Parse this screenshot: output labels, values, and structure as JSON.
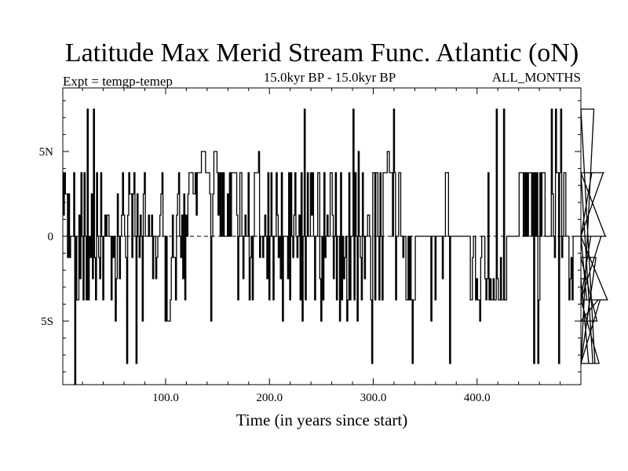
{
  "chart_data": {
    "type": "line",
    "title": "Latitude Max Merid Stream Func. Atlantic (oN)",
    "subtitle_left": "Expt = temgp-temep",
    "subtitle_center": "15.0kyr BP - 15.0kyr BP",
    "subtitle_right": "ALL_MONTHS",
    "xlabel": "Time (in years since start)",
    "ylabel": "",
    "xlim": [
      1,
      500
    ],
    "ylim": [
      -8.75,
      8.75
    ],
    "x_ticks": [
      {
        "value": 100,
        "label": "100.0"
      },
      {
        "value": 200,
        "label": "200.0"
      },
      {
        "value": 300,
        "label": "300.0"
      },
      {
        "value": 400,
        "label": "400.0"
      }
    ],
    "y_ticks": [
      {
        "value": 5,
        "label": "5N"
      },
      {
        "value": 0,
        "label": "0"
      },
      {
        "value": -5,
        "label": "5S"
      }
    ],
    "zero_line": true,
    "step": true,
    "series": [
      {
        "name": "latitude",
        "x_start": 1,
        "x_step": 1,
        "values": [
          3.75,
          1.25,
          3.75,
          2.5,
          2.5,
          -1.25,
          2.5,
          -1.25,
          0,
          0,
          0,
          3.75,
          -8.75,
          0,
          -3.75,
          -3.75,
          1.25,
          -2.5,
          3.75,
          0,
          -3.75,
          3.75,
          0,
          -3.75,
          7.5,
          -3.75,
          0,
          -1.25,
          2.5,
          -2.5,
          7.5,
          -1.25,
          -3.75,
          3.75,
          0,
          -1.25,
          -2.5,
          3.75,
          0,
          -3.75,
          0,
          1.25,
          0,
          1.25,
          1.25,
          0,
          0,
          -3.75,
          0,
          -1.25,
          0,
          -5,
          -2.5,
          2.5,
          0,
          -2.5,
          0,
          1.25,
          3.75,
          1.25,
          0,
          -1.25,
          -7.5,
          1.25,
          3.75,
          2.5,
          2.5,
          -1.25,
          2.5,
          3.75,
          0,
          -7.5,
          2.5,
          0,
          -1.25,
          1.25,
          0,
          -5,
          2.5,
          3.75,
          0,
          0,
          0,
          1.25,
          0,
          0,
          1.25,
          -2.5,
          0,
          0,
          -2.5,
          -1.25,
          0,
          0,
          1.25,
          2.5,
          3.75,
          0,
          0,
          -5,
          0,
          -5,
          -5,
          -5,
          -3.75,
          -1.25,
          1.25,
          -1.25,
          -1.25,
          -3.75,
          1.25,
          2.5,
          3.75,
          0,
          -1.25,
          1.25,
          -2.5,
          2.5,
          -3.75,
          1.25,
          0,
          2.5,
          3.75,
          3.75,
          3.75,
          3.75,
          2.5,
          2.5,
          3.75,
          1.25,
          3.75,
          3.75,
          3.75,
          3.75,
          5,
          5,
          5,
          5,
          3.75,
          3.75,
          3.75,
          3.75,
          2.5,
          -5,
          0,
          2.5,
          5,
          5,
          5,
          3.75,
          1.25,
          3.75,
          0,
          3.75,
          0,
          3.75,
          0,
          0,
          0,
          2.5,
          0,
          3.75,
          0,
          3.75,
          3.75,
          3.75,
          3.75,
          3.75,
          1.25,
          -3.75,
          0,
          3.75,
          3.75,
          0,
          -2.5,
          0,
          1.25,
          0,
          0,
          3.75,
          -3.75,
          -1.25,
          0,
          -3.75,
          0,
          3.75,
          3.75,
          3.75,
          3.75,
          5,
          -1.25,
          0,
          0,
          -1.25,
          0,
          1.25,
          0,
          -2.5,
          3.75,
          -3.75,
          0,
          3.75,
          0,
          -3.75,
          0,
          0,
          3.75,
          1.25,
          -1.25,
          0,
          -2.5,
          3.75,
          -5,
          0,
          0,
          0,
          0,
          -2.5,
          3.75,
          -3.75,
          3.75,
          0,
          -1.25,
          1.25,
          3.75,
          0,
          -1.25,
          0,
          1.25,
          -3.75,
          3.75,
          -5,
          0,
          7.5,
          -3.75,
          0,
          3.75,
          0,
          0,
          3.75,
          1.25,
          3.75,
          0,
          -3.75,
          0,
          0,
          3.75,
          3.75,
          -2.5,
          -5,
          0,
          -3.75,
          3.75,
          -1.25,
          0,
          1.25,
          0,
          0,
          3.75,
          3.75,
          1.25,
          -2.5,
          0,
          3.75,
          -3.75,
          0,
          0,
          -5,
          3.75,
          -3.75,
          0,
          -2.5,
          -1.25,
          0,
          -5,
          -3.75,
          3.75,
          -3.75,
          0,
          0,
          7.5,
          -3.75,
          3.75,
          0,
          -5,
          5,
          0,
          -1.25,
          -3.75,
          3.75,
          0,
          -2.5,
          0,
          0,
          1.25,
          1.25,
          0,
          -3.75,
          -7.5,
          3.75,
          3.75,
          -3.75,
          3.75,
          3.75,
          0,
          -3.75,
          3.75,
          0,
          -3.75,
          3.75,
          3.75,
          3.75,
          3.75,
          5,
          5,
          3.75,
          3.75,
          3.75,
          0,
          7.5,
          3.75,
          -3.75,
          0,
          0,
          3.75,
          3.75,
          0,
          0,
          -1.25,
          0,
          0,
          -3.75,
          -3.75,
          0,
          -3.75,
          0,
          -3.75,
          -7.5,
          -3.75,
          -3.75,
          0,
          0,
          0,
          0,
          0,
          0,
          0,
          0,
          0,
          0,
          0,
          0,
          0,
          0,
          0,
          -5,
          0,
          0,
          0,
          -3.75,
          0,
          0,
          0,
          0,
          0,
          0,
          -2.5,
          0,
          0,
          3.75,
          3.75,
          3.75,
          0,
          -7.5,
          0,
          0,
          0,
          0,
          0,
          0,
          0,
          0,
          0,
          0,
          0,
          0,
          0,
          0,
          0,
          0,
          0,
          0,
          0,
          -3.75,
          -3.75,
          -1.25,
          0,
          0,
          -3.75,
          -2.5,
          -3.75,
          -3.75,
          -5,
          -1.25,
          0,
          0,
          0,
          -2.5,
          -3.75,
          -2.5,
          3.75,
          -3.75,
          -2.5,
          -3.75,
          -3.75,
          -2.5,
          -3.75,
          -3.75,
          7.5,
          -2.5,
          -3.75,
          -3.75,
          -1.25,
          -3.75,
          -3.75,
          7.5,
          -3.75,
          -3.75,
          0,
          0,
          0,
          0,
          0,
          0,
          0,
          0,
          0,
          0,
          0,
          0,
          3.75,
          3.75,
          3.75,
          3.75,
          0,
          3.75,
          0,
          3.75,
          0,
          3.75,
          3.75,
          3.75,
          0,
          3.75,
          -7.5,
          3.75,
          0,
          3.75,
          -7.5,
          -3.75,
          3.75,
          0,
          3.75,
          3.75,
          3.75,
          0,
          0,
          0,
          0,
          0,
          0,
          7.5,
          2.5,
          0,
          -1.25,
          7.5,
          3.75,
          3.75,
          -7.5,
          3.75,
          7.5,
          -1.25,
          0,
          3.75,
          3.75,
          0,
          0,
          0,
          -3.75,
          -2.5,
          -1.25,
          -3.75,
          0,
          0,
          0,
          0,
          0,
          0,
          0,
          0,
          0,
          0,
          0,
          0,
          0,
          -3.75,
          -2.5,
          -7.5,
          -3.75,
          0,
          3.75,
          -7.5,
          7.5,
          -7.5,
          -1.25,
          -5,
          -3.75,
          -7.5,
          -3.75,
          0,
          0,
          3.75,
          3.75,
          0,
          0,
          -3.75
        ]
      }
    ]
  }
}
